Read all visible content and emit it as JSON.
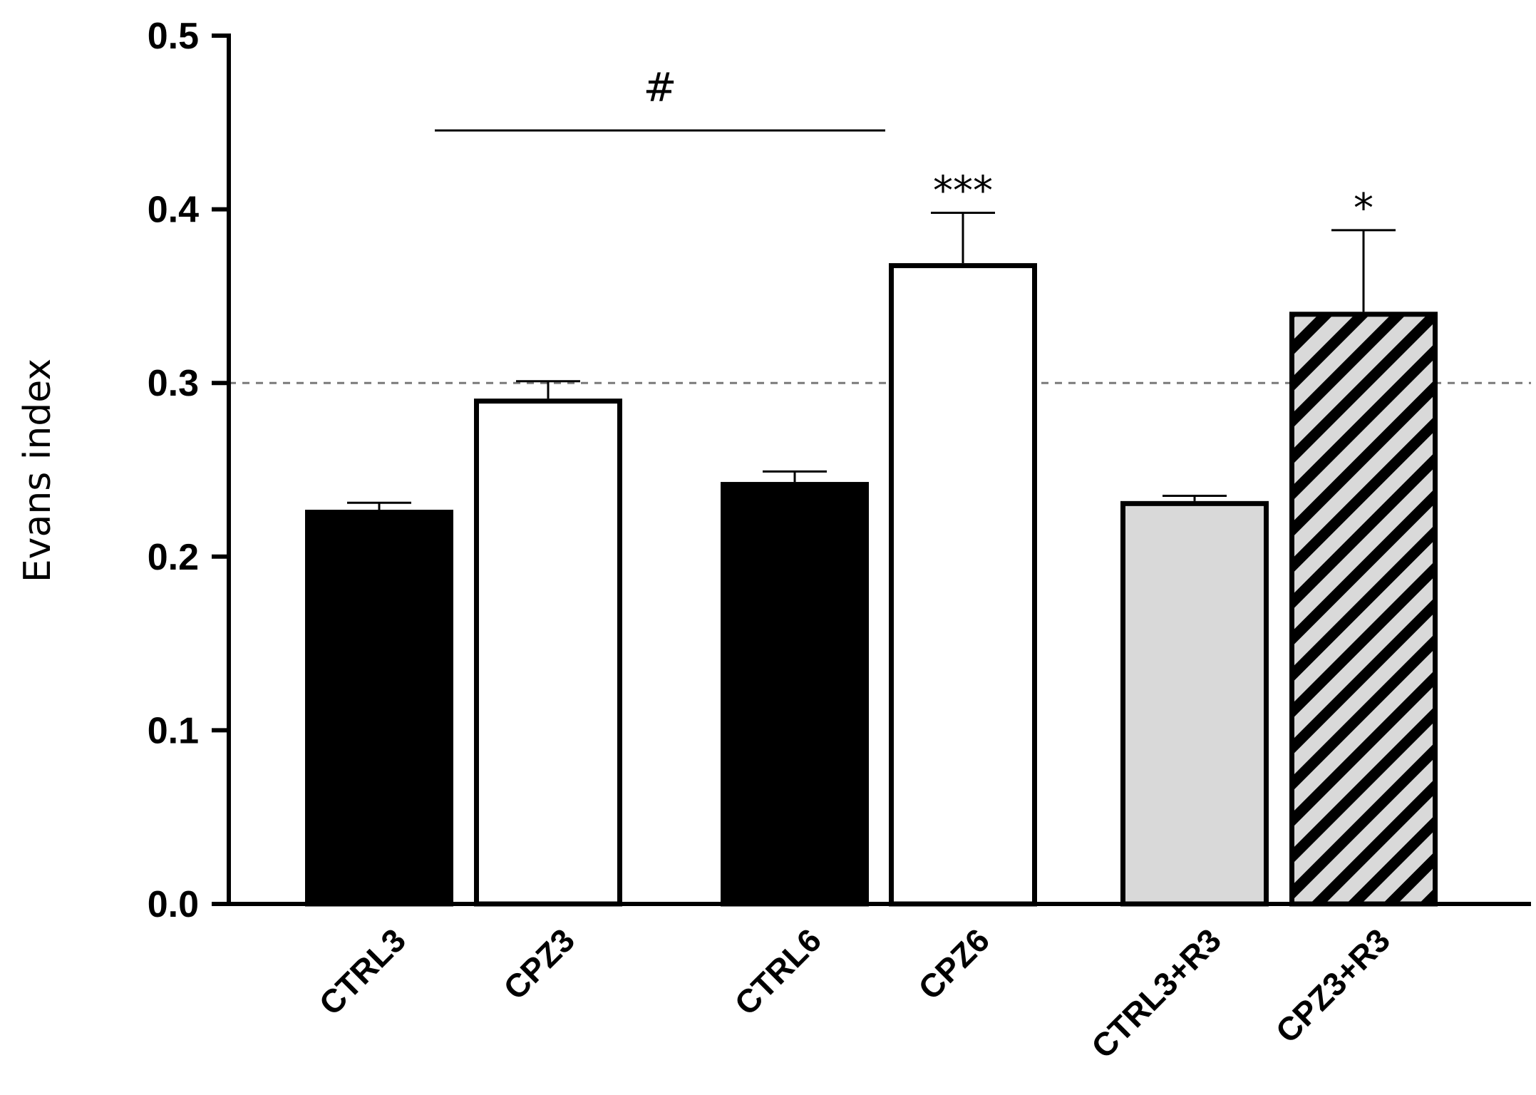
{
  "chart_data": {
    "type": "bar",
    "title": "",
    "xlabel": "",
    "ylabel": "Evans index",
    "ylim": [
      0,
      0.5
    ],
    "yticks": [
      "0.0",
      "0.1",
      "0.2",
      "0.3",
      "0.4",
      "0.5"
    ],
    "categories": [
      "CTRL3",
      "CPZ3",
      "CTRL6",
      "CPZ6",
      "CTRL3+R3",
      "CPZ3+R3"
    ],
    "values": [
      0.227,
      0.291,
      0.243,
      0.369,
      0.232,
      0.341
    ],
    "errors": [
      0.004,
      0.01,
      0.006,
      0.029,
      0.003,
      0.047
    ],
    "significance": [
      "",
      "",
      "",
      "***",
      "",
      "*"
    ],
    "bar_styles": [
      "black",
      "white",
      "black",
      "white",
      "gray",
      "hatched"
    ],
    "reference_line": {
      "y": 0.3,
      "style": "dashed"
    },
    "comparison": {
      "from": "CPZ3",
      "to": "CPZ6",
      "label": "#"
    },
    "grid": false,
    "legend": "none",
    "colors": {
      "black": "#000000",
      "white": "#ffffff",
      "gray": "#d9d9d9",
      "dashed_line": "#7a7a7a"
    }
  }
}
